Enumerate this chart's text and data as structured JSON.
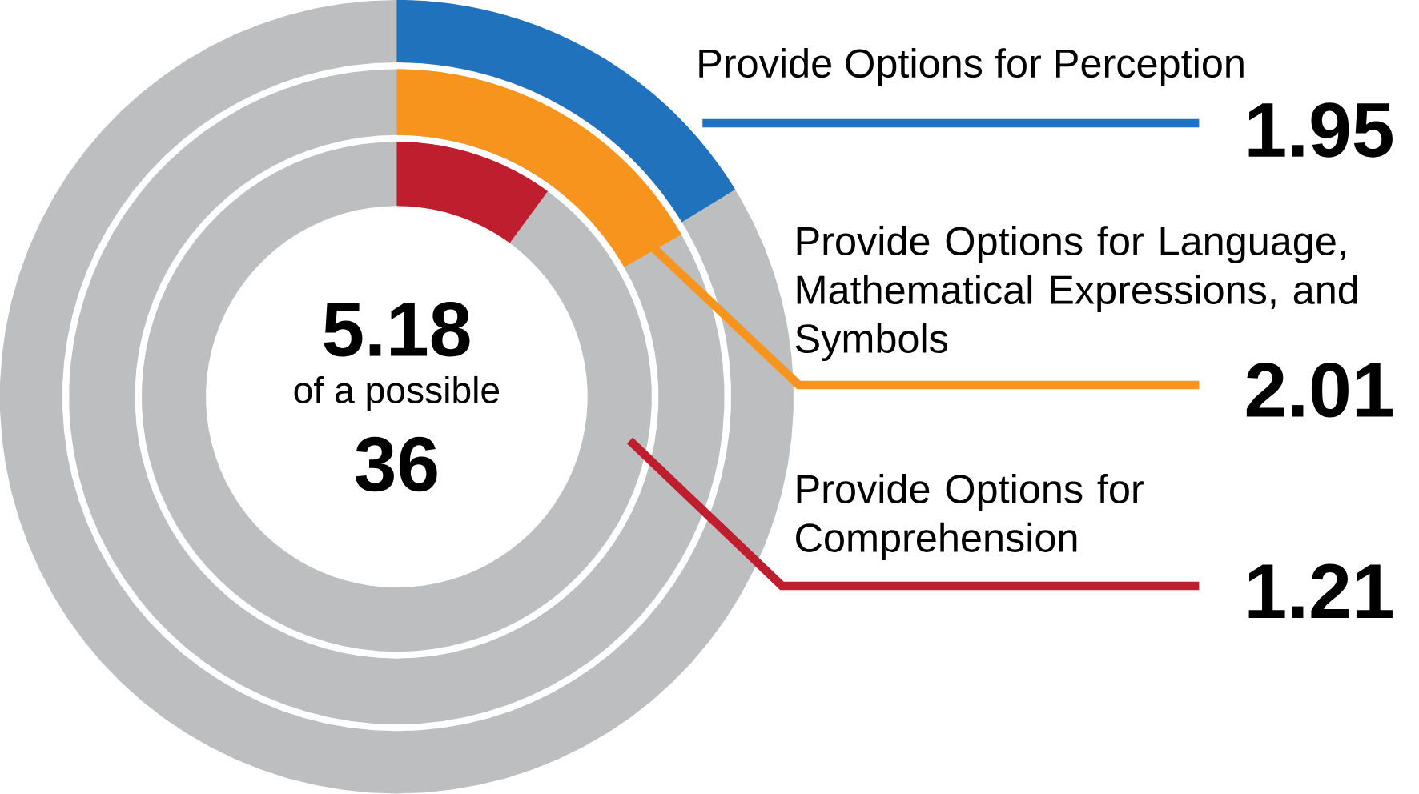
{
  "chart_data": {
    "type": "other",
    "categories": [
      "Provide Options for Perception",
      "Provide Options for Language, Mathematical Expressions, and Symbols",
      "Provide Options for Comprehension"
    ],
    "values": [
      1.95,
      2.01,
      1.21
    ],
    "colors": [
      "#1f72bb",
      "#f7941d",
      "#be1e2d"
    ],
    "data_labels": true,
    "annotations": [
      "5.18",
      "of a possible",
      "36"
    ]
  }
}
